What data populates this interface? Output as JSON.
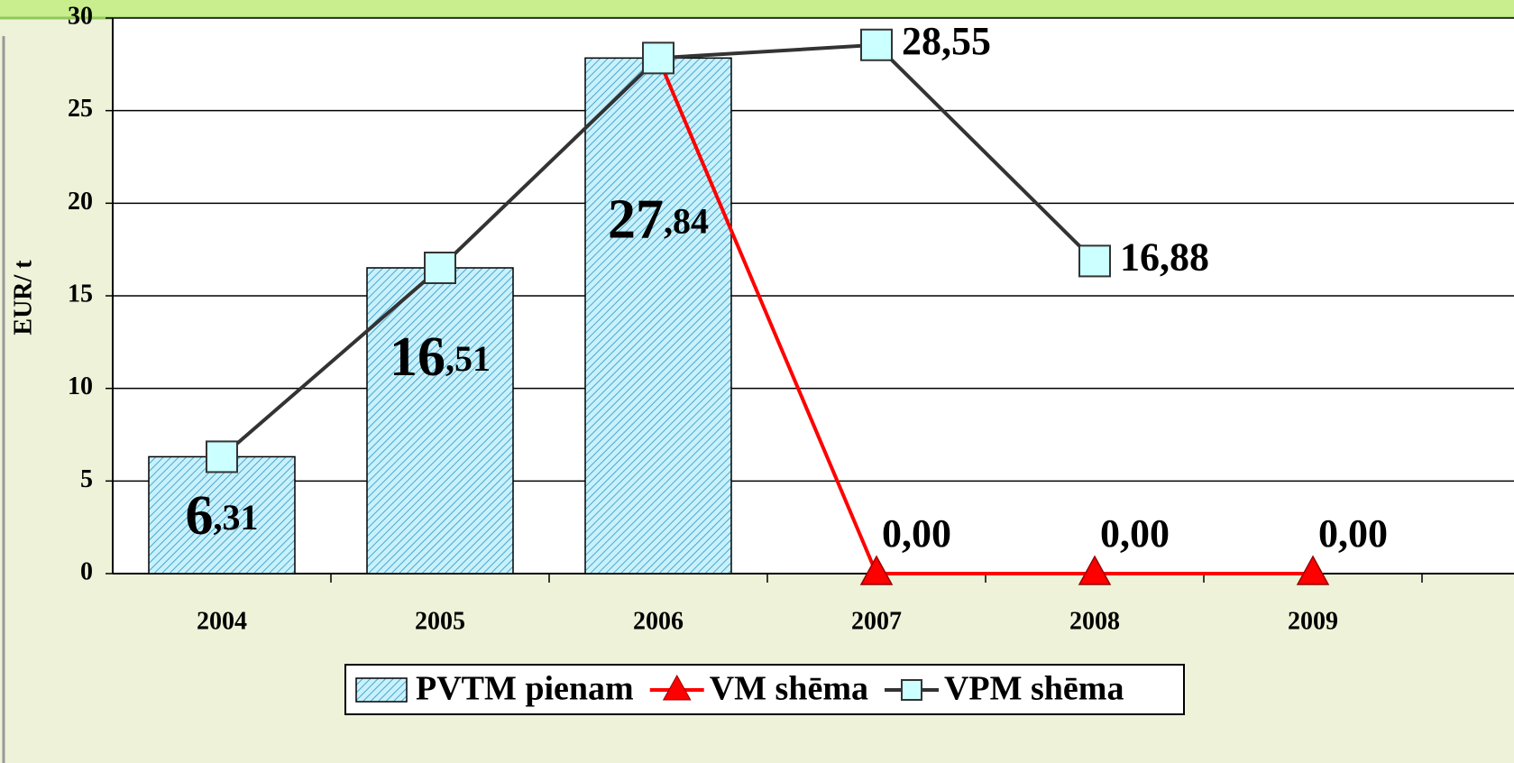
{
  "chart_data": {
    "type": "bar",
    "y_label": "EUR/ t",
    "categories": [
      "2004",
      "2005",
      "2006",
      "2007",
      "2008",
      "2009"
    ],
    "series": [
      {
        "name": "PVTM pienam",
        "type": "bar",
        "color": "#9fe3f2",
        "values": [
          6.31,
          16.51,
          27.84,
          null,
          null,
          null
        ],
        "value_labels": [
          "6,31",
          "16,51",
          "27,84",
          null,
          null,
          null
        ]
      },
      {
        "name": "VM shēma",
        "type": "line",
        "marker": "triangle",
        "color": "#ff0000",
        "values": [
          null,
          null,
          27.84,
          0,
          0,
          0
        ],
        "value_labels": [
          null,
          null,
          null,
          "0,00",
          "0,00",
          "0,00"
        ]
      },
      {
        "name": "VPM shēma",
        "type": "line",
        "marker": "square",
        "color": "#333333",
        "values": [
          6.31,
          16.51,
          27.84,
          28.55,
          16.88,
          null
        ],
        "value_labels": [
          null,
          null,
          null,
          "28,55",
          "16,88",
          null
        ]
      }
    ],
    "ylim": [
      0,
      30
    ],
    "yticks": [
      0,
      5,
      10,
      15,
      20,
      25,
      30
    ],
    "grid": true,
    "legend": "bottom"
  }
}
